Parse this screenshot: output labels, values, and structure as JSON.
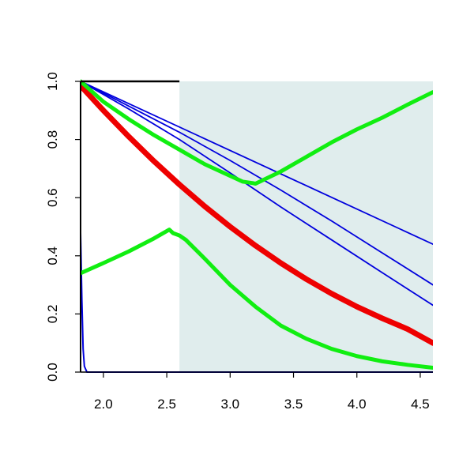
{
  "chart_data": {
    "type": "line",
    "title": "",
    "xlabel": "",
    "ylabel": "",
    "xlim": [
      1.82,
      4.6
    ],
    "ylim": [
      0.0,
      1.0
    ],
    "x_ticks": [
      2.0,
      2.5,
      3.0,
      3.5,
      4.0,
      4.5
    ],
    "x_tick_labels": [
      "2.0",
      "2.5",
      "3.0",
      "3.5",
      "4.0",
      "4.5"
    ],
    "y_ticks": [
      0.0,
      0.2,
      0.4,
      0.6,
      0.8,
      1.0
    ],
    "y_tick_labels": [
      "0.0",
      "0.2",
      "0.4",
      "0.6",
      "0.8",
      "1.0"
    ],
    "grid": false,
    "legend": "none",
    "shaded_region": {
      "x_from": 2.6,
      "x_to": 4.6,
      "color": "#e0eded"
    },
    "series": [
      {
        "color": "#0000dd",
        "width": 1.8,
        "points": [
          [
            1.82,
            1.0
          ],
          [
            4.6,
            0.44
          ]
        ]
      },
      {
        "color": "#0000dd",
        "width": 1.8,
        "points": [
          [
            1.82,
            1.0
          ],
          [
            2.2,
            0.915
          ],
          [
            2.6,
            0.825
          ],
          [
            3.0,
            0.728
          ],
          [
            3.4,
            0.626
          ],
          [
            3.8,
            0.52
          ],
          [
            4.2,
            0.41
          ],
          [
            4.6,
            0.3
          ]
        ]
      },
      {
        "color": "#0000dd",
        "width": 1.8,
        "points": [
          [
            1.82,
            1.0
          ],
          [
            2.2,
            0.905
          ],
          [
            2.6,
            0.8
          ],
          [
            3.0,
            0.685
          ],
          [
            3.4,
            0.568
          ],
          [
            3.8,
            0.455
          ],
          [
            4.2,
            0.342
          ],
          [
            4.6,
            0.23
          ]
        ]
      },
      {
        "color": "#0000dd",
        "width": 2,
        "points": [
          [
            1.82,
            0.48
          ],
          [
            1.83,
            0.25
          ],
          [
            1.84,
            0.08
          ],
          [
            1.85,
            0.02
          ],
          [
            1.87,
            0.0
          ],
          [
            4.6,
            0.0
          ]
        ]
      },
      {
        "color": "#ee0000",
        "width": 7,
        "points": [
          [
            1.82,
            0.985
          ],
          [
            2.0,
            0.9
          ],
          [
            2.2,
            0.81
          ],
          [
            2.4,
            0.725
          ],
          [
            2.6,
            0.645
          ],
          [
            2.8,
            0.57
          ],
          [
            3.0,
            0.5
          ],
          [
            3.2,
            0.435
          ],
          [
            3.4,
            0.375
          ],
          [
            3.6,
            0.32
          ],
          [
            3.8,
            0.27
          ],
          [
            4.0,
            0.225
          ],
          [
            4.2,
            0.185
          ],
          [
            4.4,
            0.148
          ],
          [
            4.6,
            0.1
          ]
        ]
      },
      {
        "color": "#11ee11",
        "width": 5,
        "points": [
          [
            1.82,
            1.0
          ],
          [
            2.0,
            0.93
          ],
          [
            2.2,
            0.87
          ],
          [
            2.4,
            0.815
          ],
          [
            2.6,
            0.765
          ],
          [
            2.8,
            0.715
          ],
          [
            3.0,
            0.675
          ],
          [
            3.1,
            0.655
          ],
          [
            3.18,
            0.65
          ],
          [
            3.2,
            0.648
          ],
          [
            3.4,
            0.69
          ],
          [
            3.6,
            0.74
          ],
          [
            3.8,
            0.79
          ],
          [
            4.0,
            0.835
          ],
          [
            4.2,
            0.875
          ],
          [
            4.4,
            0.92
          ],
          [
            4.6,
            0.963
          ]
        ]
      },
      {
        "color": "#11ee11",
        "width": 5,
        "points": [
          [
            1.82,
            0.34
          ],
          [
            2.0,
            0.375
          ],
          [
            2.2,
            0.415
          ],
          [
            2.4,
            0.46
          ],
          [
            2.52,
            0.49
          ],
          [
            2.55,
            0.478
          ],
          [
            2.6,
            0.47
          ],
          [
            2.65,
            0.455
          ],
          [
            2.8,
            0.39
          ],
          [
            3.0,
            0.3
          ],
          [
            3.2,
            0.225
          ],
          [
            3.4,
            0.16
          ],
          [
            3.6,
            0.115
          ],
          [
            3.8,
            0.08
          ],
          [
            4.0,
            0.055
          ],
          [
            4.2,
            0.037
          ],
          [
            4.4,
            0.025
          ],
          [
            4.6,
            0.015
          ]
        ]
      }
    ]
  }
}
